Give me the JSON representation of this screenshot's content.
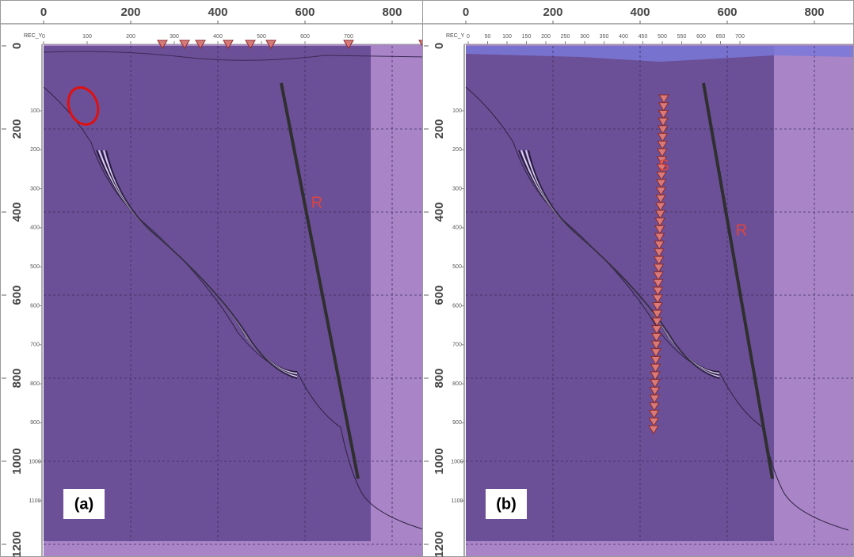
{
  "panels": [
    {
      "label": "(a)",
      "x_axis_ticks": [
        0,
        200,
        400,
        600,
        800
      ],
      "y_axis_ticks": [
        0,
        200,
        400,
        600,
        800,
        1000,
        1200
      ],
      "minor_axis_label": "REC_Y",
      "x_minor_ticks": [
        0,
        100,
        200,
        300,
        400,
        500,
        600,
        700
      ],
      "y_minor_ticks": [
        100,
        200,
        300,
        400,
        500,
        600,
        700,
        800,
        900,
        1000,
        1100
      ],
      "annotations": [
        "R"
      ]
    },
    {
      "label": "(b)",
      "x_axis_ticks": [
        0,
        200,
        400,
        600,
        800
      ],
      "y_axis_ticks": [
        0,
        200,
        400,
        600,
        800,
        1000,
        1200
      ],
      "minor_axis_label": "REC_Y",
      "x_minor_ticks": [
        0,
        50,
        100,
        150,
        200,
        250,
        300,
        350,
        400,
        450,
        500,
        550,
        600,
        650,
        700
      ],
      "y_minor_ticks": [
        100,
        200,
        300,
        400,
        500,
        600,
        700,
        800,
        900,
        1000,
        1100
      ],
      "annotations": [
        "S",
        "R"
      ]
    }
  ]
}
